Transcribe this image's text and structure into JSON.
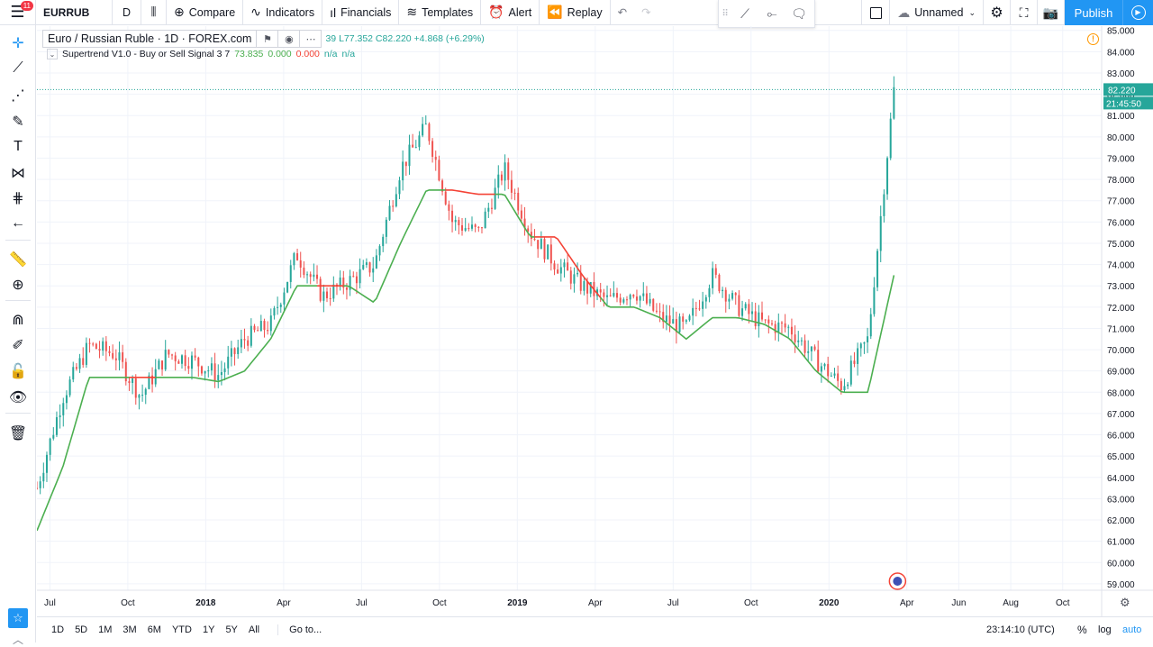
{
  "topbar": {
    "notification_count": "11",
    "symbol": "EURRUB",
    "interval": "D",
    "compare": "Compare",
    "indicators": "Indicators",
    "financials": "Financials",
    "templates": "Templates",
    "alert": "Alert",
    "replay": "Replay",
    "layout_name": "Unnamed",
    "publish": "Publish"
  },
  "legend": {
    "title": "Euro / Russian Ruble · 1D · FOREX.com",
    "ohlc": "39  L77.352  C82.220  +4.868 (+6.29%)",
    "indicator_name": "Supertrend V1.0 - Buy or Sell Signal 3 7",
    "indicator_v1": "73.835",
    "indicator_v2": "0.000",
    "indicator_v3": "0.000",
    "indicator_v4": "n/a",
    "indicator_v5": "n/a"
  },
  "price_scale": {
    "ticks": [
      "85.000",
      "84.000",
      "83.000",
      "82.000",
      "81.000",
      "80.000",
      "79.000",
      "78.000",
      "77.000",
      "76.000",
      "75.000",
      "74.000",
      "73.000",
      "72.000",
      "71.000",
      "70.000",
      "69.000",
      "68.000",
      "67.000",
      "66.000",
      "65.000",
      "64.000",
      "63.000",
      "62.000",
      "61.000",
      "60.000",
      "59.000"
    ],
    "last_price": "82.220",
    "countdown": "21:45:50"
  },
  "time_scale": {
    "labels": [
      "Jul",
      "Oct",
      "2018",
      "Apr",
      "Jul",
      "Oct",
      "2019",
      "Apr",
      "Jul",
      "Oct",
      "2020",
      "Apr",
      "Jun",
      "Aug",
      "Oct"
    ]
  },
  "bottombar": {
    "ranges": [
      "1D",
      "5D",
      "1M",
      "3M",
      "6M",
      "YTD",
      "1Y",
      "5Y",
      "All"
    ],
    "goto": "Go to...",
    "clock": "23:14:10 (UTC)",
    "percent": "%",
    "log": "log",
    "auto": "auto"
  },
  "colors": {
    "up": "#26a69a",
    "down": "#ef5350",
    "supertrend_up": "#4caf50",
    "supertrend_down": "#f44336",
    "accent": "#2196f3"
  },
  "chart_data": {
    "type": "line",
    "x": [
      "2017-06",
      "2017-07",
      "2017-08",
      "2017-09",
      "2017-10",
      "2017-11",
      "2017-12",
      "2018-01",
      "2018-02",
      "2018-03",
      "2018-04",
      "2018-05",
      "2018-06",
      "2018-07",
      "2018-08",
      "2018-09",
      "2018-10",
      "2018-11",
      "2018-12",
      "2019-01",
      "2019-02",
      "2019-03",
      "2019-04",
      "2019-05",
      "2019-06",
      "2019-07",
      "2019-08",
      "2019-09",
      "2019-10",
      "2019-11",
      "2019-12",
      "2020-01",
      "2020-02",
      "2020-03"
    ],
    "series": [
      {
        "values": [
          63.5,
          67.8,
          70.2,
          69.8,
          67.8,
          69.8,
          69.5,
          68.8,
          70.5,
          71.2,
          74.5,
          72.5,
          73.2,
          74.0,
          78.5,
          80.5,
          76.0,
          75.5,
          78.5,
          75.5,
          74.0,
          73.0,
          72.3,
          72.8,
          71.5,
          71.0,
          73.5,
          72.0,
          71.2,
          71.0,
          69.5,
          68.3,
          70.5,
          82.2
        ]
      },
      {
        "values": [
          61.5,
          64.5,
          68.7,
          68.7,
          68.7,
          68.7,
          68.7,
          68.5,
          69.0,
          70.5,
          73.0,
          73.0,
          73.0,
          72.2,
          75.0,
          77.5,
          77.5,
          77.3,
          77.3,
          75.3,
          75.3,
          73.5,
          72.0,
          72.0,
          71.5,
          70.5,
          71.5,
          71.5,
          71.2,
          70.5,
          69.0,
          68.0,
          68.0,
          73.5
        ]
      }
    ],
    "ylim": [
      58.7,
      85.2
    ],
    "grid": true,
    "last_price_line": 82.22
  }
}
